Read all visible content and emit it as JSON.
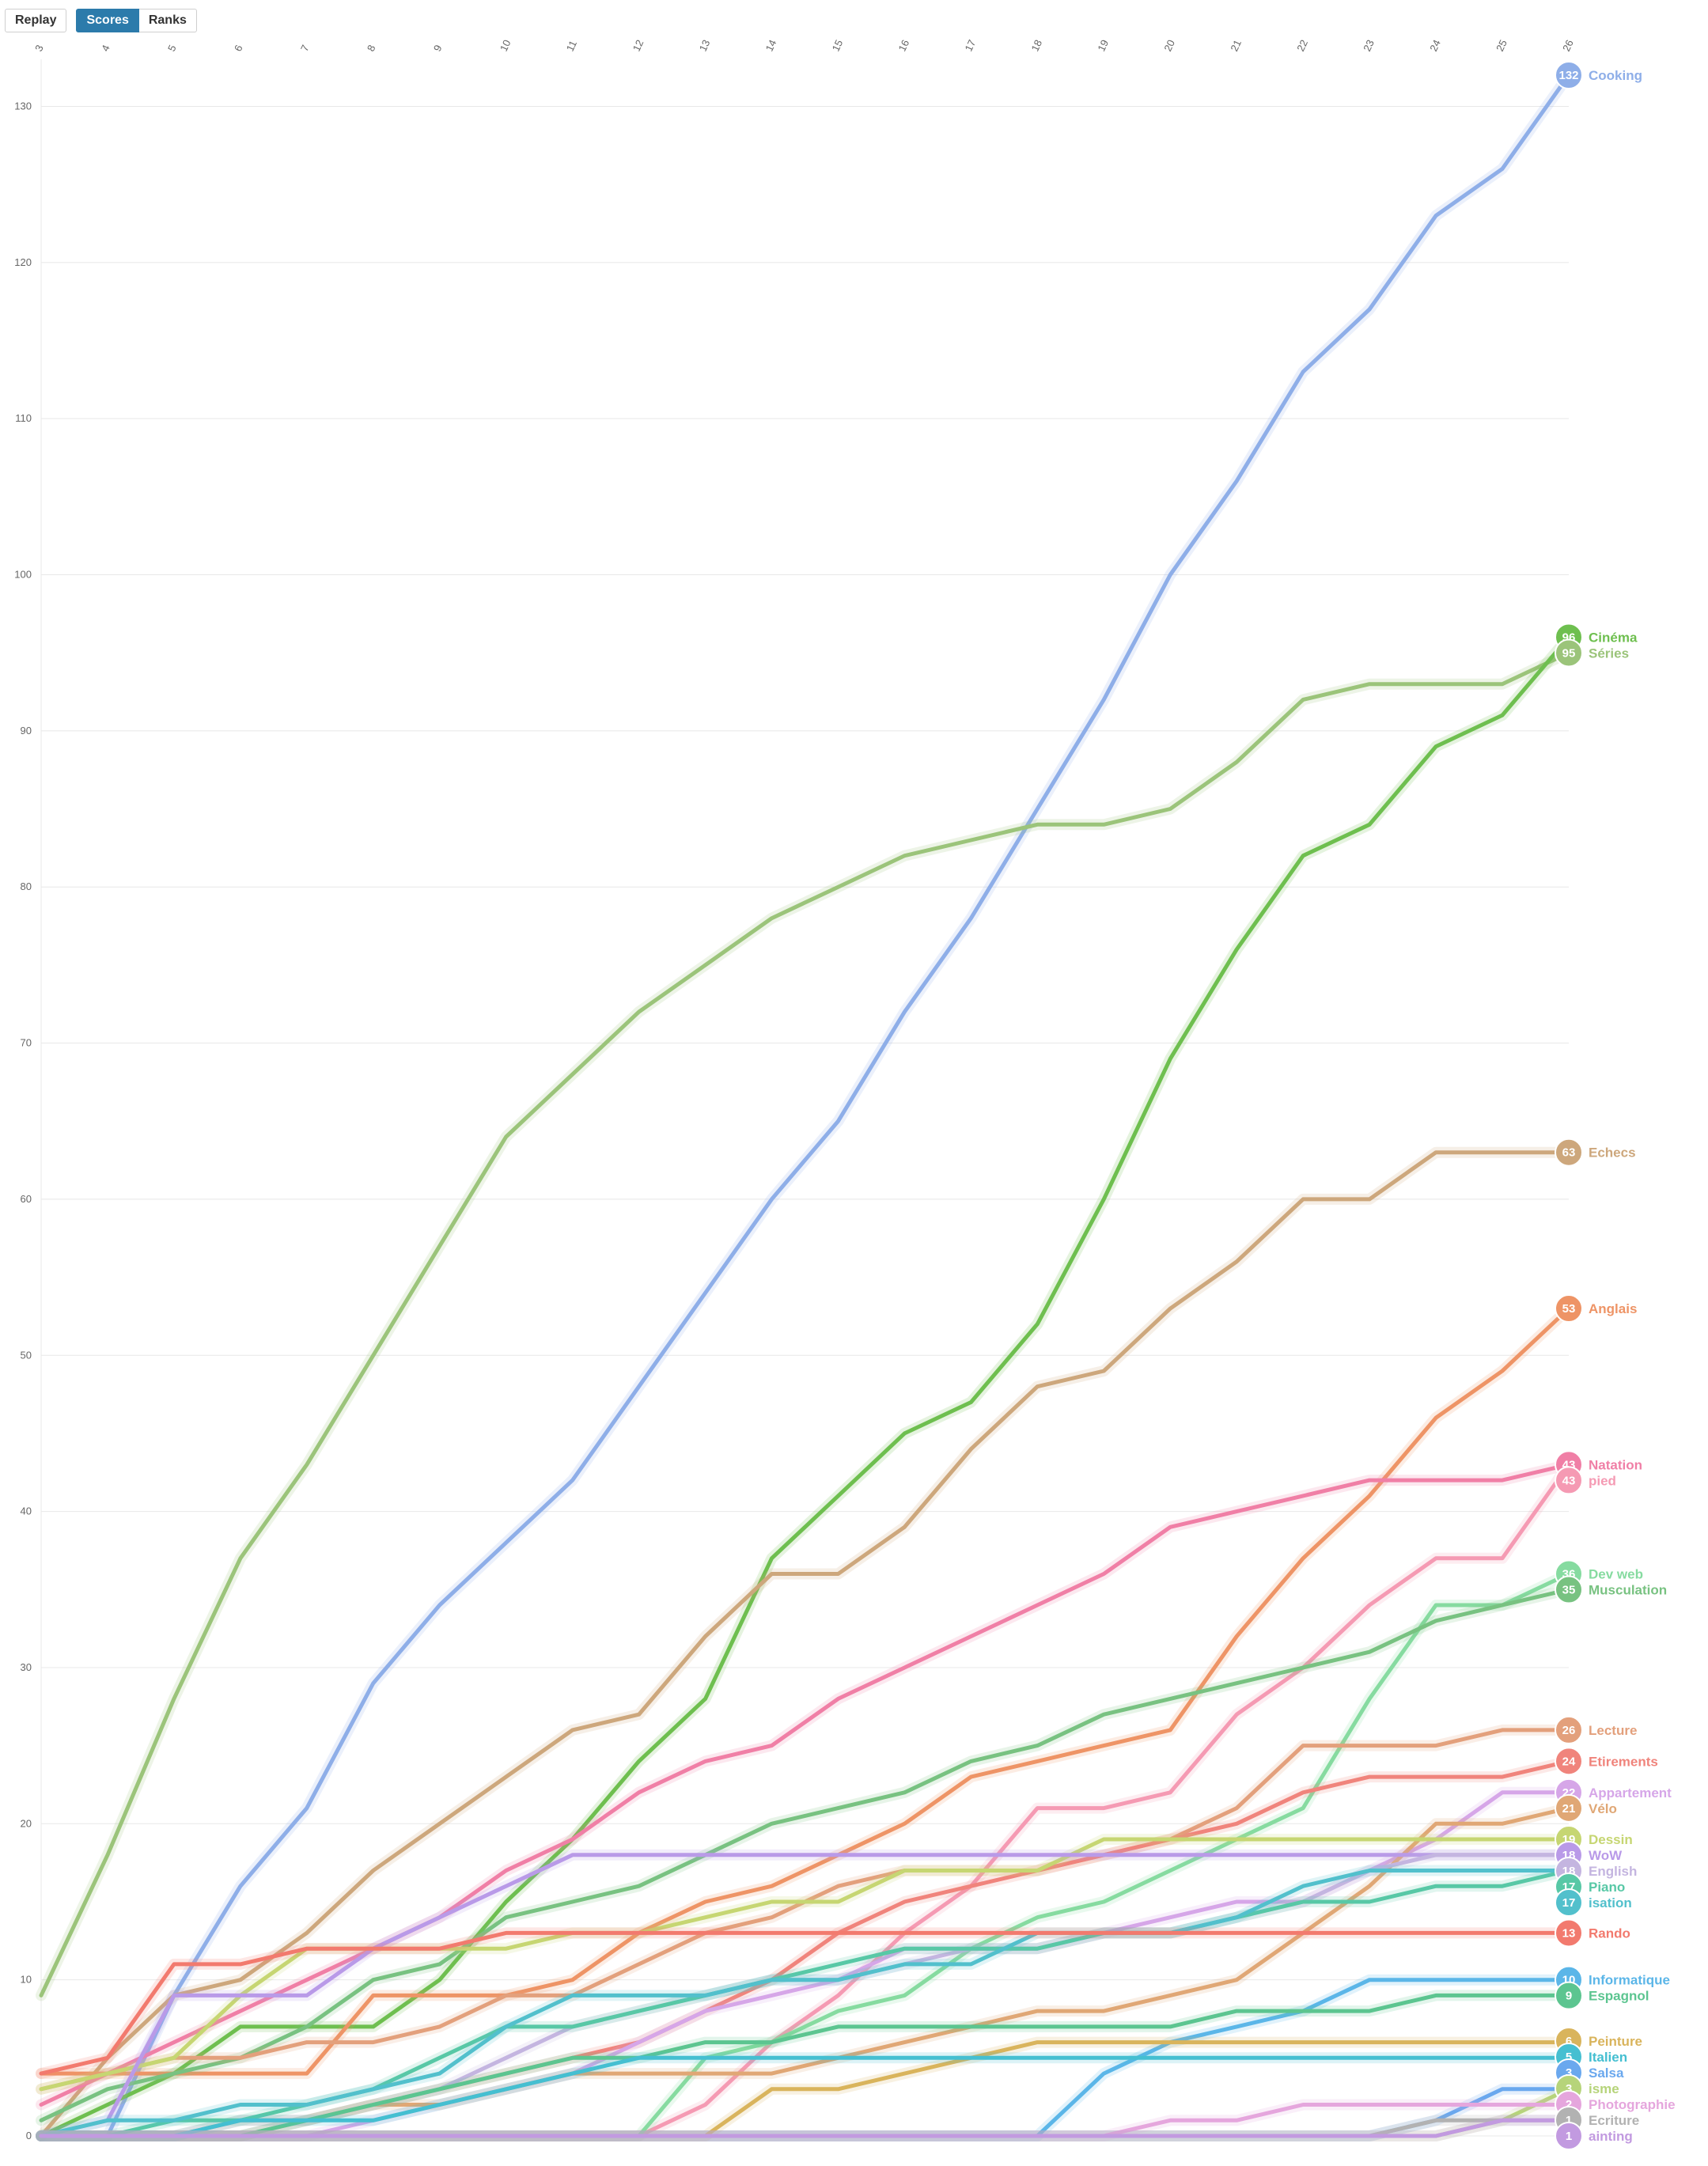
{
  "toolbar": {
    "replay_label": "Replay",
    "scores_label": "Scores",
    "ranks_label": "Ranks",
    "active": "Scores"
  },
  "chart_data": {
    "type": "line",
    "x": [
      3,
      4,
      5,
      6,
      7,
      8,
      9,
      10,
      11,
      12,
      13,
      14,
      15,
      16,
      17,
      18,
      19,
      20,
      21,
      22,
      23,
      24,
      25,
      26
    ],
    "xticks": [
      "3",
      "4",
      "5",
      "6",
      "7",
      "8",
      "9",
      "10",
      "11",
      "12",
      "13",
      "14",
      "15",
      "16",
      "17",
      "18",
      "19",
      "20",
      "21",
      "22",
      "23",
      "24",
      "25",
      "26"
    ],
    "yticks": [
      "0",
      "10",
      "20",
      "30",
      "40",
      "50",
      "60",
      "70",
      "80",
      "90",
      "100",
      "110",
      "120",
      "130"
    ],
    "ylim": [
      0,
      132
    ],
    "xlabel": "",
    "ylabel": "",
    "grid": true,
    "series": [
      {
        "name": "Cooking",
        "color": "#8eaee8",
        "values": [
          0,
          0,
          9,
          16,
          21,
          29,
          34,
          38,
          42,
          48,
          54,
          60,
          65,
          72,
          78,
          85,
          92,
          100,
          106,
          113,
          117,
          123,
          126,
          132
        ]
      },
      {
        "name": "Séries",
        "color": "#9bc47a",
        "values": [
          9,
          18,
          28,
          37,
          43,
          50,
          57,
          64,
          68,
          72,
          75,
          78,
          80,
          82,
          83,
          84,
          84,
          85,
          88,
          92,
          93,
          93,
          93,
          95
        ]
      },
      {
        "name": "Cinéma",
        "color": "#6ebf4f",
        "values": [
          0,
          2,
          4,
          7,
          7,
          7,
          10,
          15,
          19,
          24,
          28,
          37,
          41,
          45,
          47,
          52,
          60,
          69,
          76,
          82,
          84,
          89,
          91,
          96
        ]
      },
      {
        "name": "Echecs",
        "color": "#cda77c",
        "values": [
          0,
          5,
          9,
          10,
          13,
          17,
          20,
          23,
          26,
          27,
          32,
          36,
          36,
          39,
          44,
          48,
          49,
          53,
          56,
          60,
          60,
          63,
          63,
          63
        ]
      },
      {
        "name": "Anglais",
        "color": "#ee9466",
        "values": [
          4,
          4,
          4,
          4,
          4,
          9,
          9,
          9,
          10,
          13,
          15,
          16,
          18,
          20,
          23,
          24,
          25,
          26,
          32,
          37,
          41,
          46,
          49,
          53
        ]
      },
      {
        "name": "Natation",
        "color": "#f07fa6",
        "values": [
          2,
          4,
          6,
          8,
          10,
          12,
          14,
          17,
          19,
          22,
          24,
          25,
          28,
          30,
          32,
          34,
          36,
          39,
          40,
          41,
          42,
          42,
          42,
          43
        ]
      },
      {
        "name": "pied",
        "color": "#f59ab3",
        "values": [
          0,
          0,
          0,
          0,
          0,
          0,
          0,
          0,
          0,
          0,
          2,
          6,
          9,
          13,
          16,
          21,
          21,
          22,
          27,
          30,
          34,
          37,
          37,
          43
        ]
      },
      {
        "name": "Dev web",
        "color": "#86dba0",
        "values": [
          0,
          0,
          0,
          0,
          0,
          0,
          0,
          0,
          0,
          0,
          5,
          6,
          8,
          9,
          12,
          14,
          15,
          17,
          19,
          21,
          28,
          34,
          34,
          36
        ]
      },
      {
        "name": "Musculation",
        "color": "#78c281",
        "values": [
          1,
          3,
          4,
          5,
          7,
          10,
          11,
          14,
          15,
          16,
          18,
          20,
          21,
          22,
          24,
          25,
          27,
          28,
          29,
          30,
          31,
          33,
          34,
          35
        ]
      },
      {
        "name": "Lecture",
        "color": "#e3a07c",
        "values": [
          3,
          4,
          5,
          5,
          6,
          6,
          7,
          9,
          9,
          11,
          13,
          14,
          16,
          17,
          17,
          17,
          18,
          19,
          21,
          25,
          25,
          25,
          26,
          26
        ]
      },
      {
        "name": "Etirements",
        "color": "#f0847c",
        "values": [
          0,
          0,
          0,
          1,
          1,
          2,
          3,
          4,
          5,
          6,
          8,
          10,
          13,
          15,
          16,
          17,
          18,
          19,
          20,
          22,
          23,
          23,
          23,
          24
        ]
      },
      {
        "name": "Appartement",
        "color": "#d6a6e8",
        "values": [
          0,
          0,
          0,
          0,
          0,
          1,
          2,
          3,
          4,
          6,
          8,
          9,
          10,
          12,
          12,
          12,
          13,
          14,
          15,
          15,
          17,
          19,
          22,
          22
        ]
      },
      {
        "name": "Vélo",
        "color": "#e0a775",
        "values": [
          0,
          0,
          0,
          0,
          1,
          2,
          2,
          3,
          4,
          4,
          4,
          4,
          5,
          6,
          7,
          8,
          8,
          9,
          10,
          13,
          16,
          20,
          20,
          21
        ]
      },
      {
        "name": "Dessin",
        "color": "#c6d672",
        "values": [
          3,
          4,
          5,
          9,
          12,
          12,
          12,
          12,
          13,
          13,
          14,
          15,
          15,
          17,
          17,
          17,
          19,
          19,
          19,
          19,
          19,
          19,
          19,
          19
        ]
      },
      {
        "name": "WoW",
        "color": "#b99ae8",
        "values": [
          0,
          1,
          9,
          9,
          9,
          12,
          14,
          16,
          18,
          18,
          18,
          18,
          18,
          18,
          18,
          18,
          18,
          18,
          18,
          18,
          18,
          18,
          18,
          18
        ]
      },
      {
        "name": "English",
        "color": "#c4b5e0",
        "values": [
          0,
          0,
          0,
          0,
          1,
          2,
          3,
          5,
          7,
          8,
          9,
          10,
          10,
          11,
          12,
          12,
          13,
          13,
          14,
          15,
          17,
          18,
          18,
          18
        ]
      },
      {
        "name": "Piano",
        "color": "#58c8a6",
        "values": [
          0,
          0,
          1,
          1,
          2,
          3,
          5,
          7,
          7,
          8,
          9,
          10,
          11,
          12,
          12,
          12,
          13,
          13,
          14,
          15,
          15,
          16,
          16,
          17
        ]
      },
      {
        "name": "isation",
        "color": "#52c0cc",
        "values": [
          0,
          1,
          1,
          2,
          2,
          3,
          4,
          7,
          9,
          9,
          9,
          10,
          10,
          11,
          11,
          13,
          13,
          13,
          14,
          16,
          17,
          17,
          17,
          17
        ]
      },
      {
        "name": "Rando",
        "color": "#f27a6e",
        "values": [
          4,
          5,
          11,
          11,
          12,
          12,
          12,
          13,
          13,
          13,
          13,
          13,
          13,
          13,
          13,
          13,
          13,
          13,
          13,
          13,
          13,
          13,
          13,
          13
        ]
      },
      {
        "name": "Informatique",
        "color": "#5bb6e8",
        "values": [
          0,
          0,
          0,
          0,
          0,
          0,
          0,
          0,
          0,
          0,
          0,
          0,
          0,
          0,
          0,
          0,
          4,
          6,
          7,
          8,
          10,
          10,
          10,
          10
        ]
      },
      {
        "name": "Espagnol",
        "color": "#5cc590",
        "values": [
          0,
          0,
          0,
          0,
          1,
          2,
          3,
          4,
          5,
          5,
          6,
          6,
          7,
          7,
          7,
          7,
          7,
          7,
          8,
          8,
          8,
          9,
          9,
          9
        ]
      },
      {
        "name": "Peinture",
        "color": "#d9b45c",
        "values": [
          0,
          0,
          0,
          0,
          0,
          0,
          0,
          0,
          0,
          0,
          0,
          3,
          3,
          4,
          5,
          6,
          6,
          6,
          6,
          6,
          6,
          6,
          6,
          6
        ]
      },
      {
        "name": "Italien",
        "color": "#45bfd1",
        "values": [
          0,
          0,
          0,
          1,
          1,
          1,
          2,
          3,
          4,
          5,
          5,
          5,
          5,
          5,
          5,
          5,
          5,
          5,
          5,
          5,
          5,
          5,
          5,
          5
        ]
      },
      {
        "name": "Salsa",
        "color": "#6aa8ee",
        "values": [
          0,
          0,
          0,
          0,
          0,
          0,
          0,
          0,
          0,
          0,
          0,
          0,
          0,
          0,
          0,
          0,
          0,
          0,
          0,
          0,
          0,
          1,
          3,
          3
        ]
      },
      {
        "name": "isme",
        "color": "#b6d47a",
        "values": [
          0,
          0,
          0,
          0,
          0,
          0,
          0,
          0,
          0,
          0,
          0,
          0,
          0,
          0,
          0,
          0,
          0,
          0,
          0,
          0,
          0,
          0,
          1,
          3
        ]
      },
      {
        "name": "Photographie",
        "color": "#e5a6dd",
        "values": [
          0,
          0,
          0,
          0,
          0,
          0,
          0,
          0,
          0,
          0,
          0,
          0,
          0,
          0,
          0,
          0,
          0,
          1,
          1,
          2,
          2,
          2,
          2,
          2
        ]
      },
      {
        "name": "Ecriture",
        "color": "#b2b2b2",
        "values": [
          0,
          0,
          0,
          0,
          0,
          0,
          0,
          0,
          0,
          0,
          0,
          0,
          0,
          0,
          0,
          0,
          0,
          0,
          0,
          0,
          0,
          1,
          1,
          1
        ]
      },
      {
        "name": "ainting",
        "color": "#c29ae0",
        "values": [
          0,
          0,
          0,
          0,
          0,
          0,
          0,
          0,
          0,
          0,
          0,
          0,
          0,
          0,
          0,
          0,
          0,
          0,
          0,
          0,
          0,
          0,
          1,
          1
        ]
      }
    ]
  }
}
